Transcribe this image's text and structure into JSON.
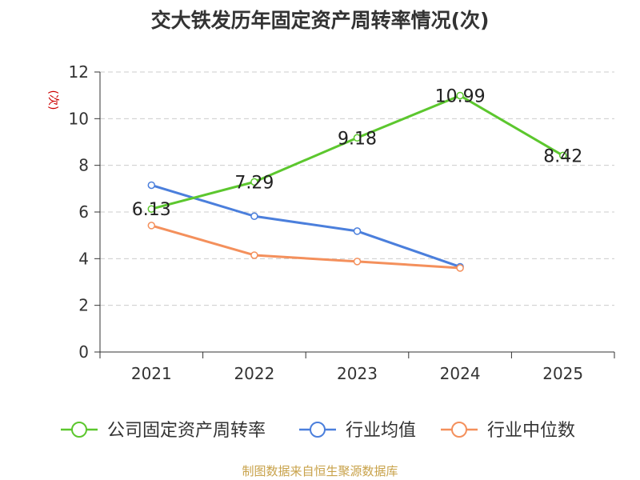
{
  "title": "交大铁发历年固定资产周转率情况(次)",
  "source": "制图数据来自恒生聚源数据库",
  "chart_data": {
    "type": "line",
    "title": "交大铁发历年固定资产周转率情况(次)",
    "ylabel": "(次)",
    "xlabel": "",
    "categories": [
      "2021",
      "2022",
      "2023",
      "2024",
      "2025"
    ],
    "ylim": [
      0,
      12
    ],
    "yticks": [
      0,
      2,
      4,
      6,
      8,
      10,
      12
    ],
    "grid": true,
    "legend_position": "bottom",
    "series": [
      {
        "name": "公司固定资产周转率",
        "color": "#5cc72e",
        "values": [
          6.13,
          7.29,
          9.18,
          10.99,
          8.42
        ],
        "labels": [
          "6.13",
          "7.29",
          "9.18",
          "10.99",
          "8.42"
        ]
      },
      {
        "name": "行业均值",
        "color": "#4b7fdc",
        "values": [
          7.15,
          5.82,
          5.18,
          3.65,
          null
        ]
      },
      {
        "name": "行业中位数",
        "color": "#f4905c",
        "values": [
          5.42,
          4.15,
          3.88,
          3.6,
          null
        ]
      }
    ]
  }
}
